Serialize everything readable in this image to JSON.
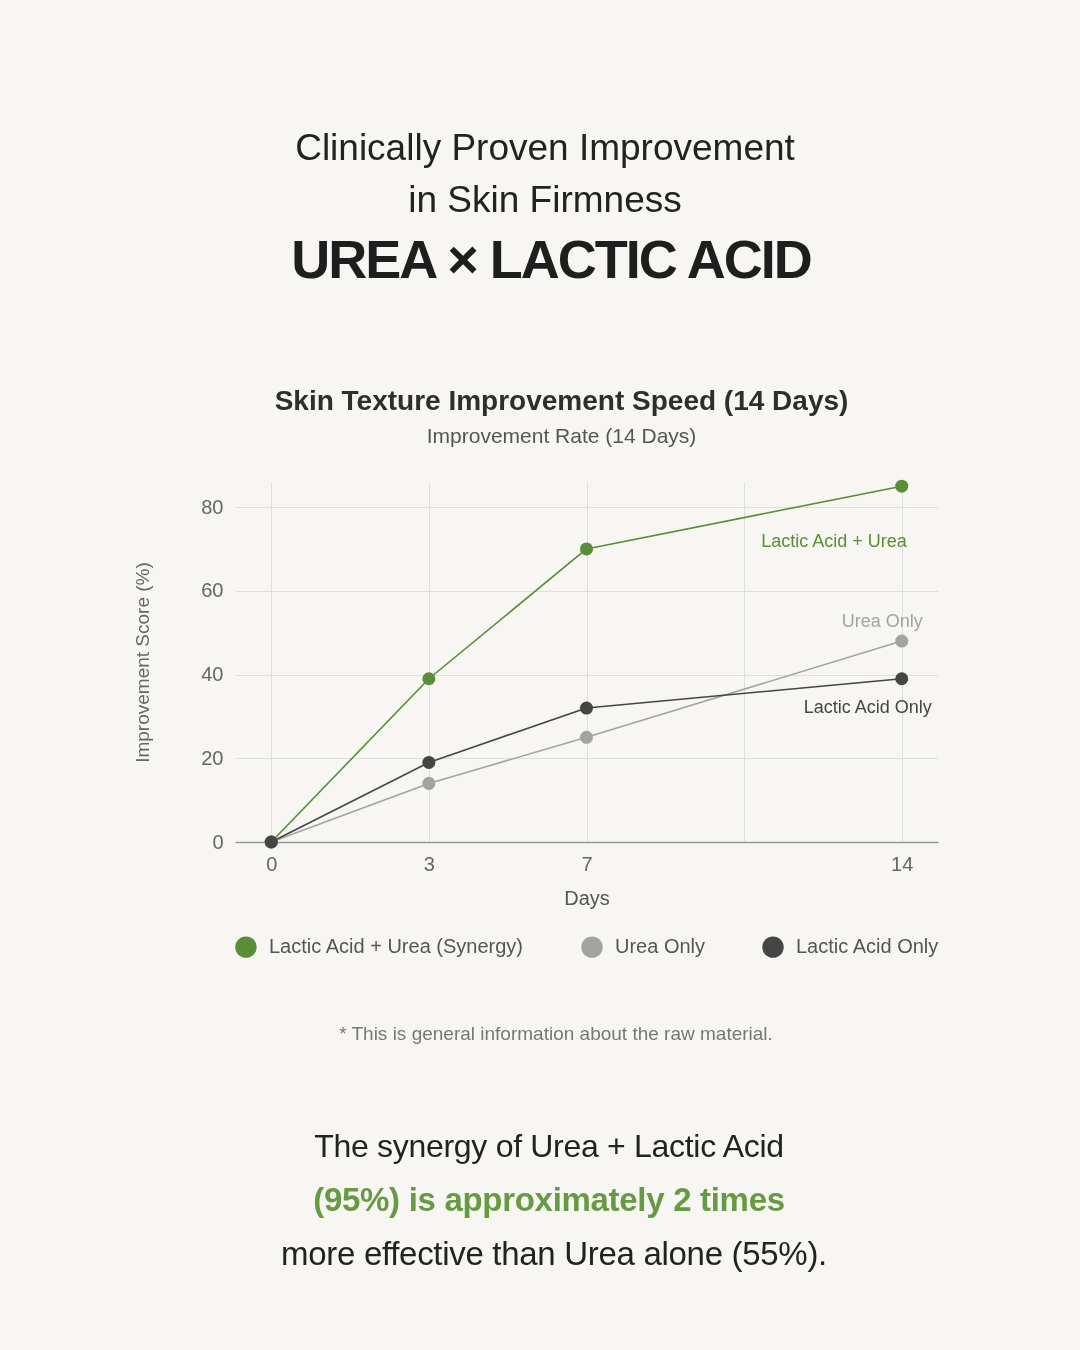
{
  "chart_data": {
    "type": "line",
    "title": "Skin Texture Improvement Speed (14 Days)",
    "subtitle": "Improvement Rate (14 Days)",
    "xlabel": "Days",
    "ylabel": "Improvement Score (%)",
    "categories": [
      "0",
      "3",
      "7",
      null,
      "14"
    ],
    "series": [
      {
        "name": "Lactic Acid + Urea (Synergy)",
        "color": "#5b8c37",
        "values": [
          0,
          39,
          70,
          null,
          85
        ]
      },
      {
        "name": "Urea Only",
        "color": "#a3a3a3",
        "values": [
          0,
          14,
          25,
          null,
          48
        ]
      },
      {
        "name": "Lactic Acid Only",
        "color": "#454545",
        "values": [
          0,
          19,
          32,
          null,
          39
        ]
      }
    ],
    "ylim": [
      0,
      86
    ],
    "yticks": [
      0,
      20,
      40,
      60,
      80
    ],
    "grid": true,
    "legend": "bottom",
    "marker": "circle",
    "line_style": "solid",
    "annotations": [
      "Clinically Proven Improvement in Skin Firmness",
      "UREA × LACTIC ACID",
      "Lactic Acid + Urea",
      "Urea Only",
      "Lactic Acid Only",
      "* This is general information about the raw material.",
      "The synergy of Urea + Lactic Acid",
      "(95%) is approximately 2 times",
      "more effective than Urea alone (55%)."
    ]
  }
}
